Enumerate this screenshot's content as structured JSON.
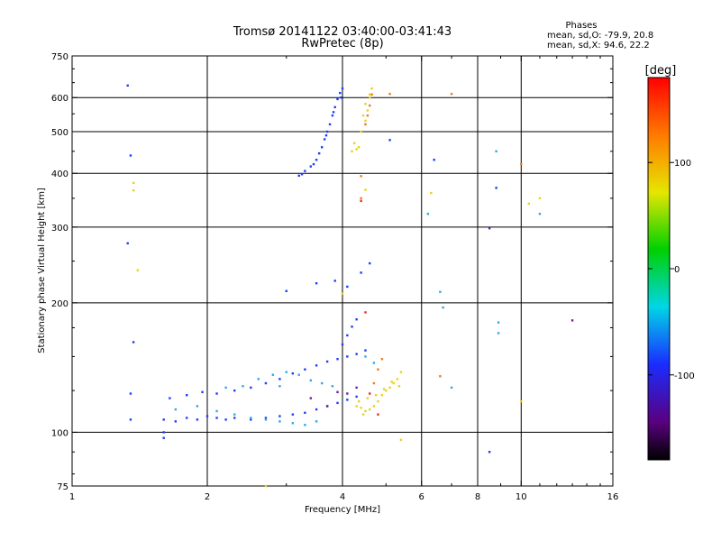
{
  "chart_data": {
    "type": "scatter",
    "title": "Tromsø 20141122 03:40:00-03:41:43",
    "subtitle": "RwPretec (8p)",
    "xlabel": "Frequency [MHz]",
    "ylabel": "Stationary phase Virtual Height [km]",
    "x_scale": "log",
    "y_scale": "log",
    "xlim": [
      1,
      16
    ],
    "ylim": [
      75,
      750
    ],
    "x_ticks": [
      1,
      2,
      4,
      6,
      8,
      10,
      16
    ],
    "x_tick_labels": [
      "1",
      "2",
      "4",
      "6",
      "8",
      "10",
      "16"
    ],
    "y_ticks": [
      75,
      100,
      200,
      300,
      400,
      500,
      600,
      750
    ],
    "y_tick_labels": [
      "75",
      "100",
      "200",
      "300",
      "400",
      "500",
      "600",
      "750"
    ],
    "grid_x": [
      2,
      4,
      6,
      8,
      10
    ],
    "grid_y": [
      100,
      200,
      300,
      400,
      500,
      600
    ],
    "grid": true,
    "stats": {
      "heading": "Phases",
      "line_o": "mean, sd,O: -79.9, 20.8",
      "line_x": "mean, sd,X:  94.6, 22.2"
    },
    "colorbar": {
      "unit": "[deg]",
      "range": [
        -180,
        180
      ],
      "ticks": [
        100,
        0,
        -100
      ],
      "tick_labels": [
        "100",
        "0",
        "-100"
      ]
    },
    "series": [
      {
        "color": "#1e3cff",
        "points": [
          [
            3.2,
            395
          ],
          [
            3.3,
            405
          ],
          [
            3.4,
            415
          ],
          [
            3.5,
            430
          ],
          [
            3.55,
            445
          ],
          [
            3.6,
            460
          ],
          [
            3.65,
            480
          ],
          [
            3.7,
            500
          ],
          [
            3.75,
            520
          ],
          [
            3.8,
            545
          ],
          [
            3.85,
            570
          ],
          [
            3.9,
            595
          ],
          [
            3.95,
            615
          ],
          [
            4.0,
            630
          ],
          [
            3.25,
            398
          ],
          [
            3.45,
            420
          ],
          [
            3.68,
            490
          ],
          [
            3.82,
            555
          ],
          [
            3.97,
            600
          ],
          [
            1.6,
            107
          ],
          [
            1.7,
            106
          ],
          [
            1.8,
            108
          ],
          [
            1.9,
            107
          ],
          [
            2.0,
            109
          ],
          [
            2.1,
            108
          ],
          [
            2.2,
            107
          ],
          [
            2.3,
            108
          ],
          [
            2.5,
            107
          ],
          [
            2.7,
            108
          ],
          [
            2.9,
            109
          ],
          [
            3.1,
            110
          ],
          [
            3.3,
            111
          ],
          [
            3.5,
            113
          ],
          [
            3.7,
            115
          ],
          [
            3.9,
            117
          ],
          [
            4.1,
            119
          ],
          [
            4.3,
            121
          ],
          [
            1.65,
            120
          ],
          [
            1.8,
            122
          ],
          [
            1.95,
            124
          ],
          [
            2.1,
            123
          ],
          [
            2.3,
            125
          ],
          [
            2.5,
            127
          ],
          [
            2.7,
            130
          ],
          [
            2.9,
            133
          ],
          [
            3.1,
            137
          ],
          [
            3.3,
            140
          ],
          [
            3.5,
            143
          ],
          [
            3.7,
            146
          ],
          [
            3.9,
            148
          ],
          [
            4.1,
            150
          ],
          [
            4.3,
            152
          ],
          [
            4.5,
            155
          ],
          [
            4.0,
            160
          ],
          [
            4.1,
            168
          ],
          [
            4.2,
            176
          ],
          [
            4.3,
            183
          ],
          [
            1.35,
            107
          ],
          [
            1.35,
            123
          ],
          [
            1.37,
            162
          ],
          [
            1.33,
            275
          ],
          [
            1.33,
            640
          ],
          [
            1.35,
            440
          ],
          [
            1.6,
            100
          ],
          [
            1.6,
            97
          ],
          [
            3.0,
            213
          ],
          [
            3.5,
            222
          ],
          [
            3.85,
            225
          ],
          [
            4.1,
            218
          ],
          [
            4.4,
            235
          ],
          [
            4.6,
            247
          ],
          [
            5.1,
            478
          ],
          [
            6.4,
            430
          ],
          [
            8.5,
            90
          ],
          [
            8.8,
            370
          ]
        ]
      },
      {
        "color": "#2fa8e6",
        "points": [
          [
            1.7,
            113
          ],
          [
            1.9,
            115
          ],
          [
            2.1,
            112
          ],
          [
            2.3,
            110
          ],
          [
            2.5,
            108
          ],
          [
            2.7,
            107
          ],
          [
            2.9,
            106
          ],
          [
            3.1,
            105
          ],
          [
            3.3,
            104
          ],
          [
            3.5,
            106
          ],
          [
            2.2,
            127
          ],
          [
            2.4,
            128
          ],
          [
            2.6,
            133
          ],
          [
            2.8,
            136
          ],
          [
            3.0,
            138
          ],
          [
            3.2,
            136
          ],
          [
            3.4,
            132
          ],
          [
            3.6,
            130
          ],
          [
            3.8,
            128
          ],
          [
            4.5,
            150
          ],
          [
            4.7,
            145
          ],
          [
            6.6,
            212
          ],
          [
            6.7,
            195
          ],
          [
            8.9,
            180
          ],
          [
            8.9,
            170
          ],
          [
            11.0,
            322
          ],
          [
            6.2,
            322
          ],
          [
            8.8,
            450
          ],
          [
            7.0,
            127
          ],
          [
            2.9,
            128
          ]
        ]
      },
      {
        "color": "#e6d21e",
        "points": [
          [
            4.3,
            115
          ],
          [
            4.4,
            114
          ],
          [
            4.5,
            112
          ],
          [
            4.6,
            113
          ],
          [
            4.7,
            115
          ],
          [
            4.8,
            118
          ],
          [
            4.9,
            122
          ],
          [
            5.0,
            125
          ],
          [
            5.1,
            127
          ],
          [
            5.2,
            130
          ],
          [
            5.3,
            133
          ],
          [
            5.4,
            138
          ],
          [
            4.35,
            118
          ],
          [
            4.55,
            120
          ],
          [
            4.75,
            122
          ],
          [
            4.95,
            126
          ],
          [
            5.15,
            131
          ],
          [
            5.35,
            128
          ],
          [
            4.45,
            110
          ],
          [
            4.35,
            460
          ],
          [
            4.3,
            455
          ],
          [
            4.2,
            450
          ],
          [
            4.25,
            470
          ],
          [
            4.4,
            500
          ],
          [
            4.5,
            530
          ],
          [
            4.55,
            560
          ],
          [
            4.6,
            600
          ],
          [
            4.65,
            630
          ],
          [
            4.5,
            580
          ],
          [
            4.45,
            545
          ],
          [
            4.6,
            610
          ],
          [
            1.37,
            380
          ],
          [
            1.37,
            365
          ],
          [
            1.4,
            238
          ],
          [
            6.3,
            360
          ],
          [
            10.4,
            340
          ],
          [
            11.0,
            350
          ],
          [
            10.0,
            118
          ],
          [
            4.0,
            210
          ],
          [
            4.5,
            366
          ],
          [
            2.7,
            75
          ],
          [
            5.4,
            96
          ]
        ]
      },
      {
        "color": "#f07a1e",
        "points": [
          [
            4.55,
            545
          ],
          [
            4.6,
            575
          ],
          [
            4.65,
            610
          ],
          [
            4.5,
            520
          ],
          [
            4.7,
            130
          ],
          [
            4.8,
            140
          ],
          [
            4.9,
            148
          ],
          [
            4.4,
            350
          ],
          [
            4.4,
            394
          ],
          [
            5.1,
            612
          ],
          [
            7.0,
            612
          ],
          [
            10.0,
            420
          ],
          [
            6.6,
            135
          ]
        ]
      },
      {
        "color": "#6a1fa0",
        "points": [
          [
            4.1,
            123
          ],
          [
            4.3,
            127
          ],
          [
            3.9,
            124
          ],
          [
            8.5,
            298
          ],
          [
            13.0,
            182
          ],
          [
            3.7,
            115
          ],
          [
            3.4,
            120
          ]
        ]
      },
      {
        "color": "#e6301e",
        "points": [
          [
            4.4,
            345
          ],
          [
            4.5,
            190
          ],
          [
            4.6,
            123
          ],
          [
            4.8,
            110
          ]
        ]
      }
    ]
  }
}
